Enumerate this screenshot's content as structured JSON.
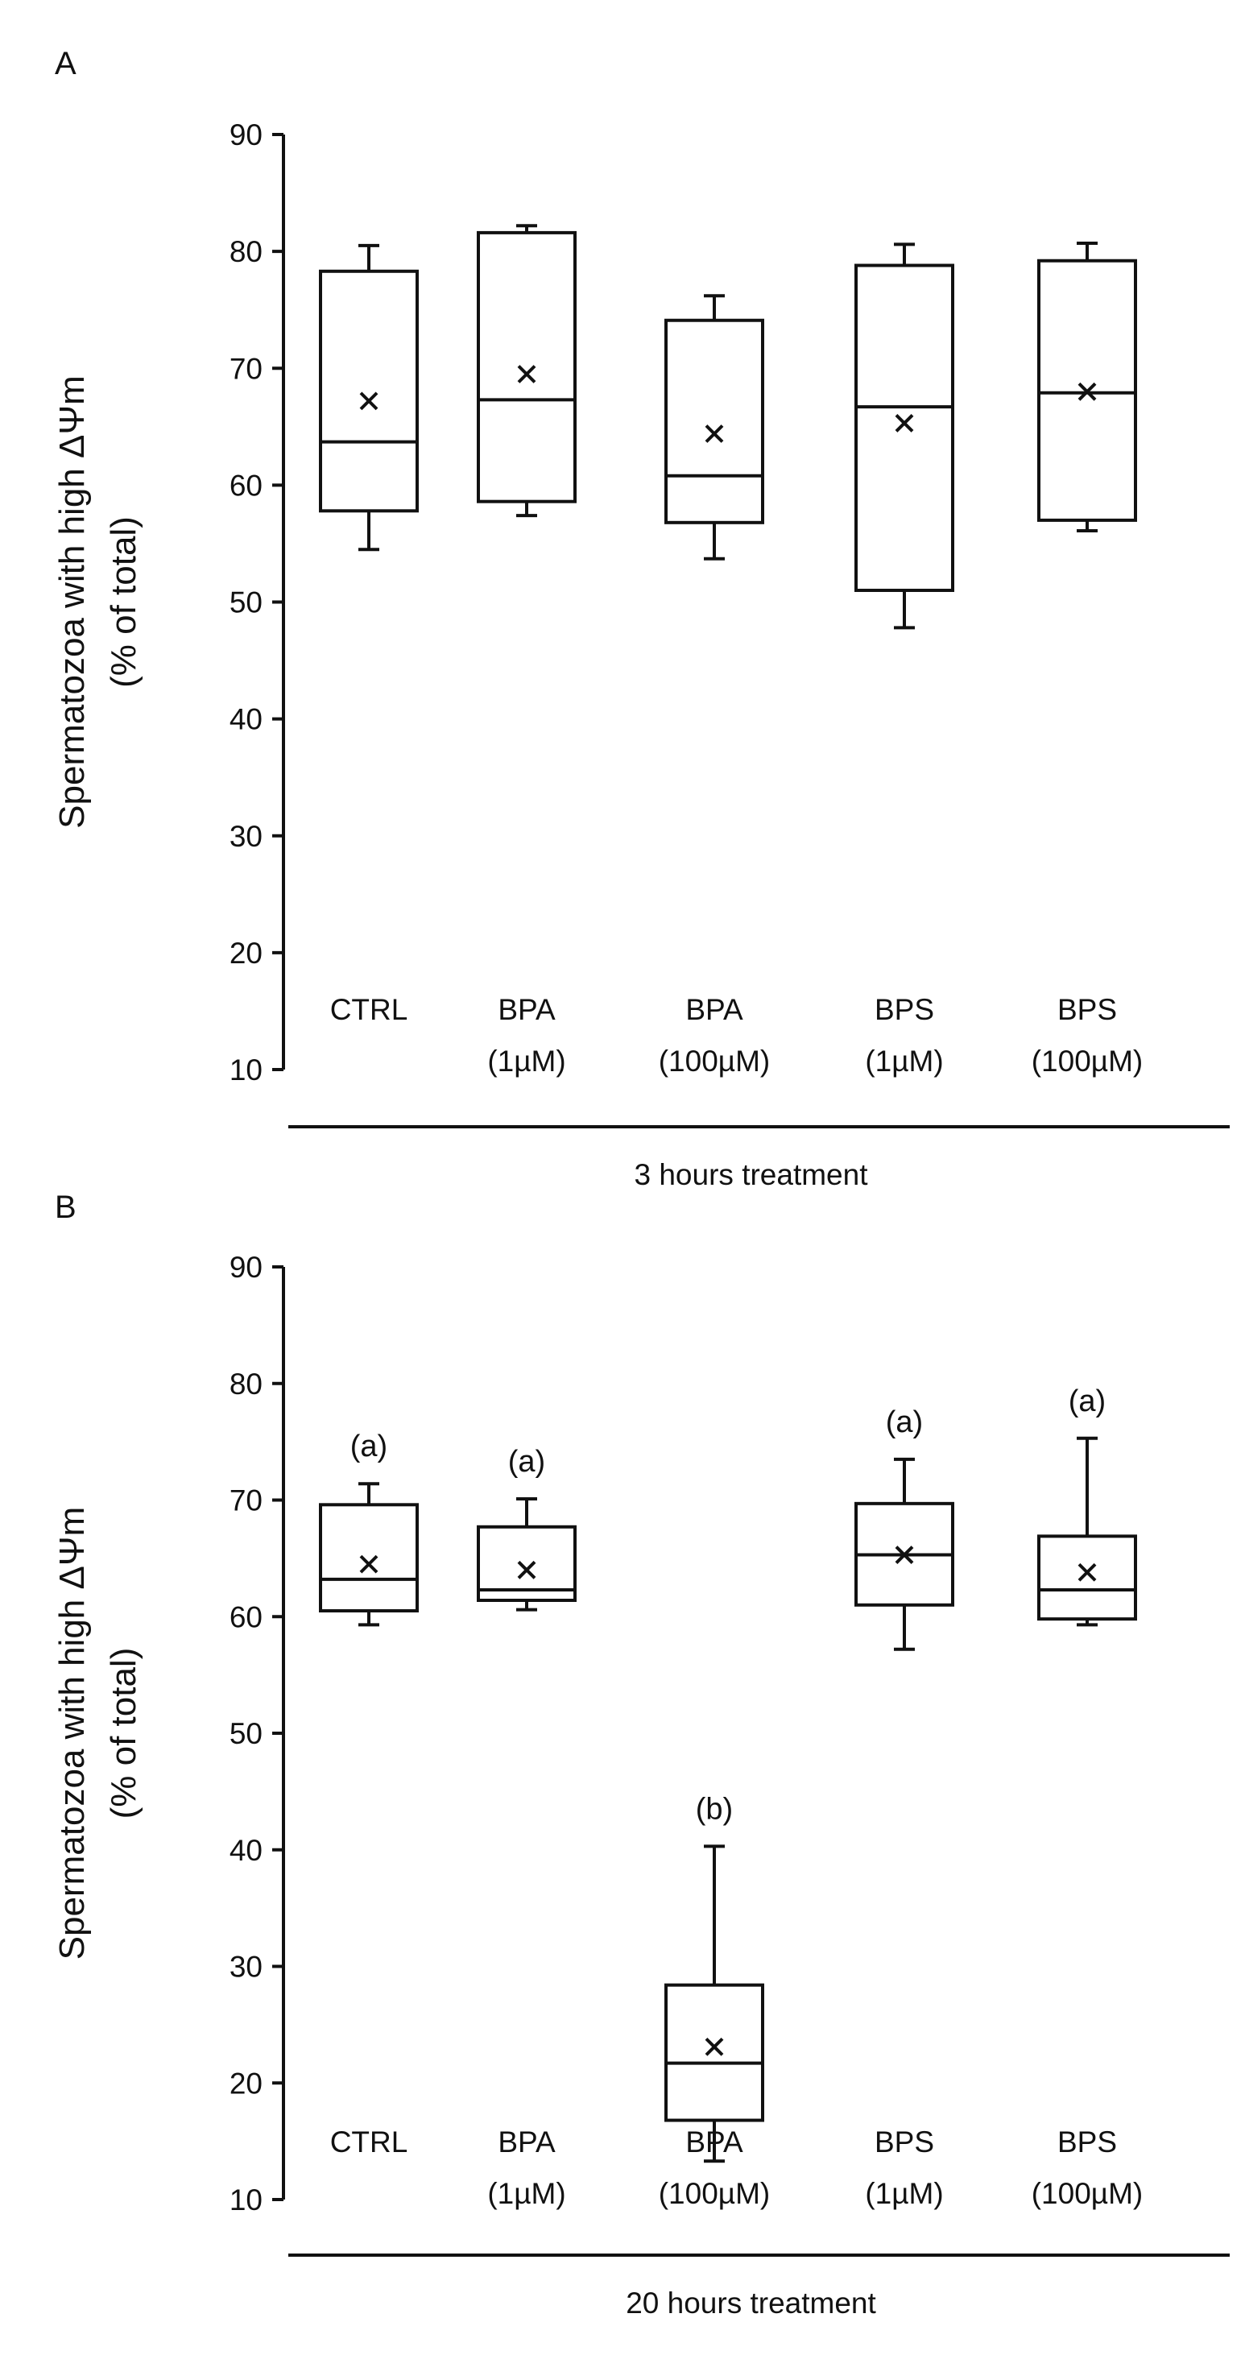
{
  "chart_data": [
    {
      "type": "box",
      "panel_label": "A",
      "title": "",
      "ylabel": [
        "Spermatozoa with high ΔΨm",
        "(% of total)"
      ],
      "xlabel": "3 hours treatment",
      "ylim": [
        10,
        90
      ],
      "yticks": [
        10,
        20,
        30,
        40,
        50,
        60,
        70,
        80,
        90
      ],
      "grid": false,
      "categories": [
        {
          "line1": "CTRL",
          "line2": ""
        },
        {
          "line1": "BPA",
          "line2": "(1µM)"
        },
        {
          "line1": "BPA",
          "line2": "(100µM)"
        },
        {
          "line1": "BPS",
          "line2": "(1µM)"
        },
        {
          "line1": "BPS",
          "line2": "(100µM)"
        }
      ],
      "boxes": [
        {
          "whisker_low": 54.5,
          "q1": 57.8,
          "median": 63.7,
          "q3": 78.3,
          "whisker_high": 80.5,
          "mean": 67.2,
          "sig": ""
        },
        {
          "whisker_low": 57.4,
          "q1": 58.6,
          "median": 67.3,
          "q3": 81.6,
          "whisker_high": 82.2,
          "mean": 69.5,
          "sig": ""
        },
        {
          "whisker_low": 53.7,
          "q1": 56.8,
          "median": 60.8,
          "q3": 74.1,
          "whisker_high": 76.2,
          "mean": 64.4,
          "sig": ""
        },
        {
          "whisker_low": 47.8,
          "q1": 51.0,
          "median": 66.7,
          "q3": 78.8,
          "whisker_high": 80.6,
          "mean": 65.3,
          "sig": ""
        },
        {
          "whisker_low": 56.1,
          "q1": 57.0,
          "median": 67.9,
          "q3": 79.2,
          "whisker_high": 80.7,
          "mean": 68.0,
          "sig": ""
        }
      ]
    },
    {
      "type": "box",
      "panel_label": "B",
      "title": "",
      "ylabel": [
        "Spermatozoa with high ΔΨm",
        "(% of total)"
      ],
      "xlabel": "20 hours treatment",
      "ylim": [
        10,
        90
      ],
      "yticks": [
        10,
        20,
        30,
        40,
        50,
        60,
        70,
        80,
        90
      ],
      "grid": false,
      "categories": [
        {
          "line1": "CTRL",
          "line2": ""
        },
        {
          "line1": "BPA",
          "line2": "(1µM)"
        },
        {
          "line1": "BPA",
          "line2": "(100µM)"
        },
        {
          "line1": "BPS",
          "line2": "(1µM)"
        },
        {
          "line1": "BPS",
          "line2": "(100µM)"
        }
      ],
      "boxes": [
        {
          "whisker_low": 59.3,
          "q1": 60.5,
          "median": 63.2,
          "q3": 69.6,
          "whisker_high": 71.4,
          "mean": 64.5,
          "sig": "(a)"
        },
        {
          "whisker_low": 60.6,
          "q1": 61.4,
          "median": 62.3,
          "q3": 67.7,
          "whisker_high": 70.1,
          "mean": 64.0,
          "sig": "(a)"
        },
        {
          "whisker_low": 13.3,
          "q1": 16.8,
          "median": 21.7,
          "q3": 28.4,
          "whisker_high": 40.3,
          "mean": 23.1,
          "sig": "(b)"
        },
        {
          "whisker_low": 57.2,
          "q1": 61.0,
          "median": 65.3,
          "q3": 69.7,
          "whisker_high": 73.5,
          "mean": 65.3,
          "sig": "(a)"
        },
        {
          "whisker_low": 59.3,
          "q1": 59.8,
          "median": 62.3,
          "q3": 66.9,
          "whisker_high": 75.3,
          "mean": 63.8,
          "sig": "(a)"
        }
      ]
    }
  ]
}
